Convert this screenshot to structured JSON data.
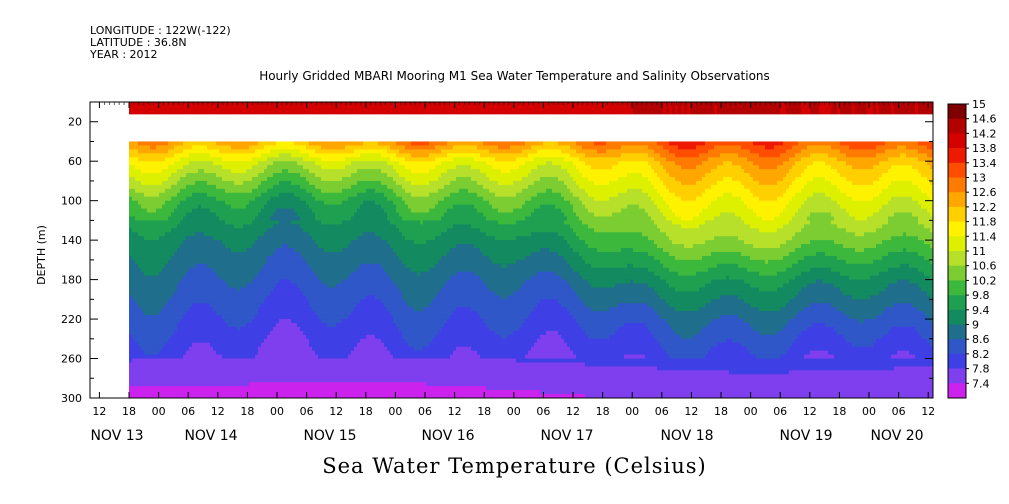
{
  "header": {
    "longitude": "LONGITUDE : 122W(-122)",
    "latitude": "LATITUDE : 36.8N",
    "year": "YEAR : 2012"
  },
  "chart_data": {
    "type": "heatmap",
    "title": "Hourly Gridded MBARI Mooring M1 Sea Water Temperature and Salinity Observations",
    "xlabel": "Sea Water Temperature (Celsius)",
    "ylabel": "DEPTH (m)",
    "ylim": [
      300,
      0
    ],
    "y_ticks": [
      20,
      60,
      100,
      140,
      180,
      220,
      260,
      300
    ],
    "x_hour_ticks": [
      "12",
      "18",
      "00",
      "06",
      "12",
      "18",
      "00",
      "06",
      "12",
      "18",
      "00",
      "06",
      "12",
      "18",
      "00",
      "06",
      "12",
      "18",
      "00",
      "06",
      "12",
      "18",
      "00",
      "06",
      "12",
      "18",
      "00",
      "06",
      "12",
      "18",
      "00",
      "06",
      "12",
      "18",
      "00",
      "06",
      "12"
    ],
    "x_date_ticks": [
      "NOV 13",
      "NOV 14",
      "NOV 15",
      "NOV 16",
      "NOV 17",
      "NOV 18",
      "NOV 19",
      "NOV 20"
    ],
    "colorbar_levels": [
      "15",
      "14.6",
      "14.2",
      "13.8",
      "13.4",
      "13",
      "12.6",
      "12.2",
      "11.8",
      "11.4",
      "11",
      "10.6",
      "10.2",
      "9.8",
      "9.4",
      "9",
      "8.6",
      "8.2",
      "7.8",
      "7.4"
    ],
    "colors": [
      "#7f0000",
      "#b30000",
      "#d40000",
      "#ee1a00",
      "#ff4d00",
      "#ff7a00",
      "#ffa600",
      "#ffcf00",
      "#fff200",
      "#dcf000",
      "#b6e02a",
      "#7ccd32",
      "#3cb83c",
      "#1fa050",
      "#138a60",
      "#1f6e8c",
      "#2f57c8",
      "#3f3fe6",
      "#7f3fee",
      "#cc22ee"
    ],
    "x_start": "NOV 13 18:00",
    "x_end": "NOV 20 12:00",
    "depth_profiles": [
      {
        "time": "NOV 13 18:00",
        "depths": [
          10,
          40,
          60,
          100,
          140,
          180,
          220,
          260,
          280,
          300
        ],
        "temps": [
          14.4,
          12.6,
          11.6,
          10.2,
          9.4,
          9.0,
          8.6,
          8.2,
          7.9,
          7.6
        ]
      },
      {
        "time": "NOV 15 18:00",
        "depths": [
          10,
          40,
          60,
          100,
          140,
          180,
          220,
          260,
          280,
          300
        ],
        "temps": [
          14.4,
          12.8,
          11.4,
          10.0,
          9.4,
          8.9,
          8.5,
          8.1,
          7.8,
          7.6
        ]
      },
      {
        "time": "NOV 17 00:00",
        "depths": [
          10,
          40,
          60,
          100,
          140,
          180,
          220,
          260,
          280,
          300
        ],
        "temps": [
          14.4,
          13.0,
          11.8,
          10.6,
          9.6,
          9.0,
          8.6,
          8.2,
          7.9,
          7.7
        ]
      },
      {
        "time": "NOV 18 00:00",
        "depths": [
          10,
          40,
          60,
          100,
          140,
          180,
          220,
          260,
          280,
          300
        ],
        "temps": [
          14.6,
          13.4,
          12.4,
          11.4,
          10.6,
          9.6,
          8.8,
          8.3,
          8.0,
          7.8
        ]
      },
      {
        "time": "NOV 19 00:00",
        "depths": [
          10,
          40,
          60,
          100,
          140,
          180,
          220,
          260,
          280,
          300
        ],
        "temps": [
          14.6,
          13.6,
          12.8,
          11.8,
          11.0,
          9.8,
          9.0,
          8.4,
          8.1,
          7.9
        ]
      },
      {
        "time": "NOV 20 12:00",
        "depths": [
          10,
          40,
          60,
          100,
          140,
          180,
          220,
          260,
          280,
          300
        ],
        "temps": [
          14.6,
          13.6,
          12.6,
          11.6,
          10.6,
          9.6,
          8.9,
          8.3,
          8.0,
          7.8
        ]
      }
    ],
    "no_data_depth_range": [
      12,
      40
    ]
  }
}
